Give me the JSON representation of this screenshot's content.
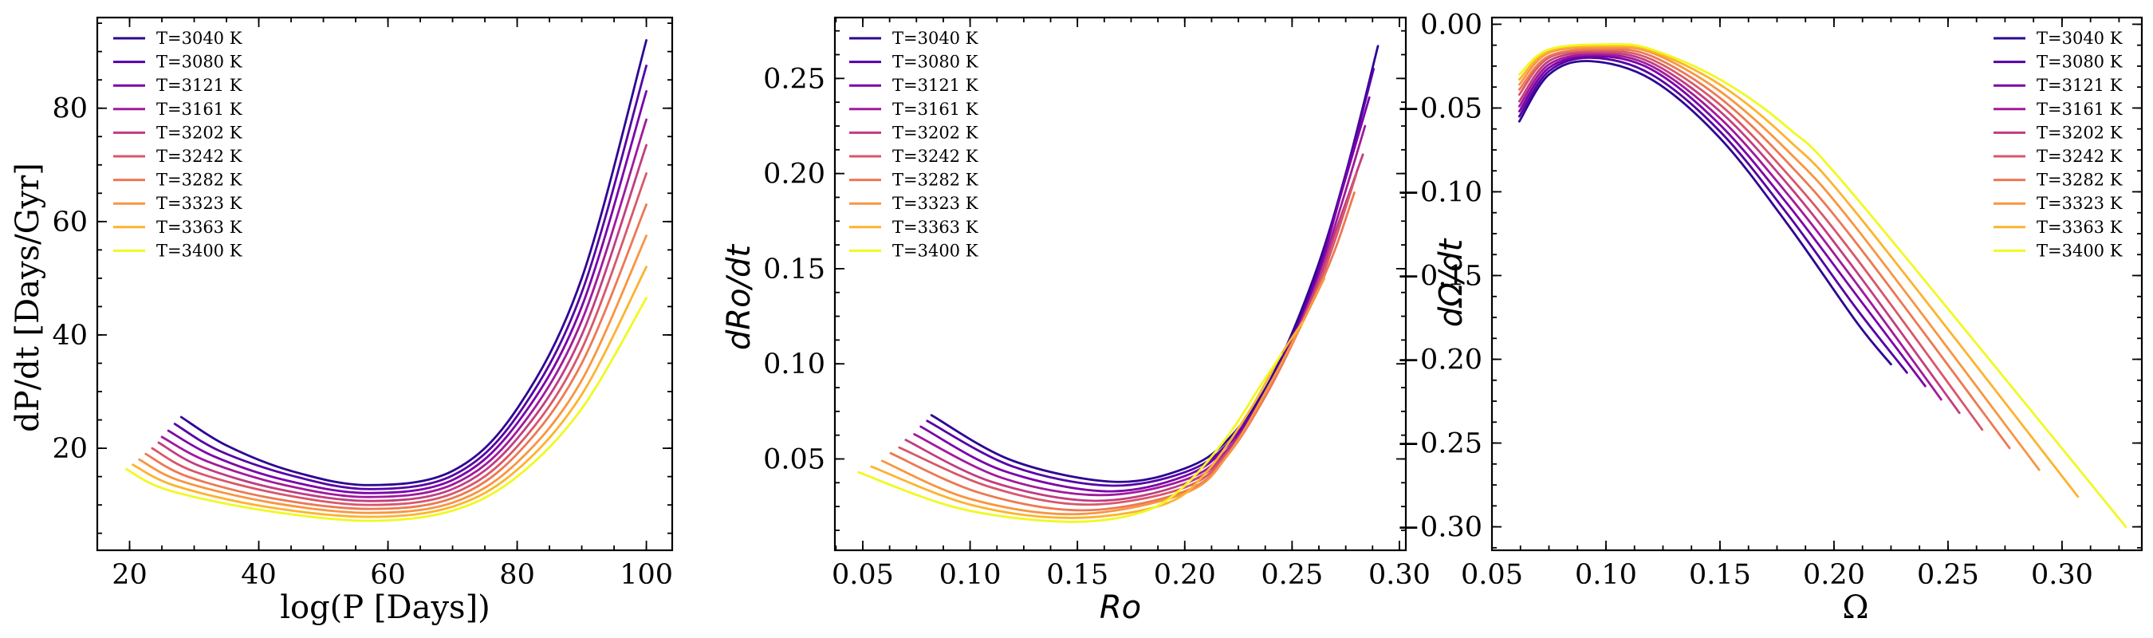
{
  "legend_labels": [
    "T=3040 K",
    "T=3080 K",
    "T=3121 K",
    "T=3161 K",
    "T=3202 K",
    "T=3242 K",
    "T=3282 K",
    "T=3323 K",
    "T=3363 K",
    "T=3400 K"
  ],
  "series_colors": [
    "#2c0594",
    "#5502a4",
    "#7b02a8",
    "#a01a9c",
    "#c13d80",
    "#d8576b",
    "#ec7853",
    "#f89540",
    "#fdb32f",
    "#f0f921"
  ],
  "chart_data": [
    {
      "type": "line",
      "xlabel": "log(P [Days])",
      "ylabel": "dP/dt [Days/Gyr]",
      "xlim": [
        15,
        104
      ],
      "ylim": [
        2,
        96
      ],
      "xticks": [
        20,
        40,
        60,
        80,
        100
      ],
      "yticks": [
        20,
        40,
        60,
        80
      ],
      "grid": false,
      "legend_position": "top-left",
      "series": [
        {
          "name": "T=3040 K",
          "x": [
            28,
            35,
            45,
            57,
            70,
            80,
            90,
            100
          ],
          "y": [
            25.5,
            20.5,
            16,
            13.5,
            16,
            27,
            50,
            92
          ]
        },
        {
          "name": "T=3080 K",
          "x": [
            27,
            34,
            45,
            57,
            70,
            80,
            90,
            100
          ],
          "y": [
            24.3,
            19.5,
            15.2,
            12.8,
            15.2,
            25.7,
            47.5,
            87.5
          ]
        },
        {
          "name": "T=3121 K",
          "x": [
            26,
            33,
            44,
            57,
            70,
            80,
            90,
            100
          ],
          "y": [
            23.1,
            18.6,
            14.4,
            12.1,
            14.4,
            24.4,
            45,
            83
          ]
        },
        {
          "name": "T=3161 K",
          "x": [
            25,
            32,
            44,
            57,
            70,
            80,
            90,
            100
          ],
          "y": [
            22,
            17.7,
            13.5,
            11.4,
            13.6,
            23,
            42.5,
            78
          ]
        },
        {
          "name": "T=3202 K",
          "x": [
            24.5,
            31,
            43,
            57,
            70,
            80,
            90,
            100
          ],
          "y": [
            21,
            16.8,
            12.8,
            10.7,
            12.8,
            21.7,
            40,
            73.5
          ]
        },
        {
          "name": "T=3242 K",
          "x": [
            23.5,
            30,
            43,
            57,
            70,
            80,
            90,
            100
          ],
          "y": [
            20,
            15.9,
            12,
            10,
            12,
            20.3,
            37.5,
            68.5
          ]
        },
        {
          "name": "T=3282 K",
          "x": [
            22.5,
            29,
            42,
            57,
            70,
            80,
            90,
            100
          ],
          "y": [
            19,
            15,
            11.2,
            9.3,
            11.2,
            19,
            35,
            63
          ]
        },
        {
          "name": "T=3323 K",
          "x": [
            21.5,
            28,
            42,
            57,
            70,
            80,
            90,
            100
          ],
          "y": [
            18,
            14.2,
            10.4,
            8.6,
            10.4,
            17.5,
            32,
            57.5
          ]
        },
        {
          "name": "T=3363 K",
          "x": [
            20.5,
            27,
            41,
            57,
            70,
            80,
            90,
            100
          ],
          "y": [
            17.1,
            13.4,
            9.7,
            7.9,
            9.7,
            16.2,
            29.5,
            52
          ]
        },
        {
          "name": "T=3400 K",
          "x": [
            19.5,
            26,
            41,
            57,
            70,
            80,
            90,
            100
          ],
          "y": [
            16.3,
            12.6,
            9,
            7.2,
            9,
            15,
            27,
            46.5
          ]
        }
      ]
    },
    {
      "type": "line",
      "xlabel": "Ro",
      "ylabel": "dRo/dt",
      "xlim": [
        0.037,
        0.303
      ],
      "ylim": [
        0.002,
        0.282
      ],
      "xticks": [
        0.05,
        0.1,
        0.15,
        0.2,
        0.25,
        0.3
      ],
      "yticks": [
        0.05,
        0.1,
        0.15,
        0.2,
        0.25
      ],
      "grid": false,
      "legend_position": "top-left",
      "series": [
        {
          "name": "T=3040 K",
          "x": [
            0.082,
            0.12,
            0.167,
            0.2,
            0.22,
            0.24,
            0.26,
            0.275,
            0.29
          ],
          "y": [
            0.073,
            0.049,
            0.038,
            0.045,
            0.06,
            0.092,
            0.145,
            0.2,
            0.267
          ]
        },
        {
          "name": "T=3080 K",
          "x": [
            0.08,
            0.12,
            0.165,
            0.2,
            0.22,
            0.24,
            0.26,
            0.274,
            0.288
          ],
          "y": [
            0.07,
            0.046,
            0.036,
            0.043,
            0.058,
            0.09,
            0.142,
            0.195,
            0.255
          ]
        },
        {
          "name": "T=3121 K",
          "x": [
            0.077,
            0.115,
            0.163,
            0.2,
            0.22,
            0.24,
            0.26,
            0.273,
            0.286
          ],
          "y": [
            0.067,
            0.044,
            0.033,
            0.041,
            0.057,
            0.089,
            0.14,
            0.19,
            0.24
          ]
        },
        {
          "name": "T=3161 K",
          "x": [
            0.074,
            0.115,
            0.16,
            0.2,
            0.22,
            0.24,
            0.26,
            0.272,
            0.284
          ],
          "y": [
            0.063,
            0.04,
            0.031,
            0.039,
            0.055,
            0.088,
            0.138,
            0.18,
            0.225
          ]
        },
        {
          "name": "T=3202 K",
          "x": [
            0.07,
            0.11,
            0.158,
            0.2,
            0.22,
            0.24,
            0.26,
            0.271,
            0.283
          ],
          "y": [
            0.06,
            0.038,
            0.028,
            0.037,
            0.054,
            0.088,
            0.137,
            0.172,
            0.21
          ]
        },
        {
          "name": "T=3242 K",
          "x": [
            0.067,
            0.11,
            0.155,
            0.2,
            0.22,
            0.24,
            0.26,
            0.27,
            0.28
          ],
          "y": [
            0.056,
            0.035,
            0.026,
            0.035,
            0.053,
            0.088,
            0.135,
            0.165,
            0.2
          ]
        },
        {
          "name": "T=3282 K",
          "x": [
            0.063,
            0.105,
            0.153,
            0.2,
            0.22,
            0.24,
            0.26,
            0.27,
            0.279
          ],
          "y": [
            0.053,
            0.032,
            0.023,
            0.033,
            0.052,
            0.088,
            0.134,
            0.16,
            0.19
          ]
        },
        {
          "name": "T=3323 K",
          "x": [
            0.059,
            0.1,
            0.15,
            0.2,
            0.22,
            0.24,
            0.255,
            0.265
          ],
          "y": [
            0.049,
            0.029,
            0.021,
            0.032,
            0.052,
            0.09,
            0.122,
            0.145
          ]
        },
        {
          "name": "T=3363 K",
          "x": [
            0.054,
            0.1,
            0.147,
            0.19,
            0.21,
            0.23,
            0.245,
            0.255
          ],
          "y": [
            0.046,
            0.026,
            0.019,
            0.026,
            0.043,
            0.075,
            0.105,
            0.122
          ]
        },
        {
          "name": "T=3400 K",
          "x": [
            0.048,
            0.095,
            0.145,
            0.18,
            0.2,
            0.22,
            0.235,
            0.245
          ],
          "y": [
            0.043,
            0.024,
            0.017,
            0.022,
            0.036,
            0.062,
            0.088,
            0.105
          ]
        }
      ]
    },
    {
      "type": "line",
      "xlabel": "Ω",
      "ylabel": "dΩ/dt",
      "xlim": [
        0.05,
        0.335
      ],
      "ylim": [
        -0.314,
        0.004
      ],
      "xticks": [
        0.05,
        0.1,
        0.15,
        0.2,
        0.25,
        0.3
      ],
      "yticks": [
        0.0,
        -0.05,
        -0.1,
        -0.15,
        -0.2,
        -0.25,
        -0.3
      ],
      "tick_labels_y": [
        "0.00",
        "−0.05",
        "−0.10",
        "−0.15",
        "−0.20",
        "−0.25",
        "−0.30"
      ],
      "grid": false,
      "legend_position": "top-right",
      "series": [
        {
          "name": "T=3040 K",
          "x": [
            0.062,
            0.075,
            0.093,
            0.12,
            0.15,
            0.18,
            0.21,
            0.225
          ],
          "y": [
            -0.058,
            -0.03,
            -0.022,
            -0.033,
            -0.068,
            -0.12,
            -0.178,
            -0.203
          ]
        },
        {
          "name": "T=3080 K",
          "x": [
            0.062,
            0.075,
            0.094,
            0.12,
            0.15,
            0.18,
            0.21,
            0.232
          ],
          "y": [
            -0.055,
            -0.028,
            -0.02,
            -0.03,
            -0.064,
            -0.114,
            -0.17,
            -0.208
          ]
        },
        {
          "name": "T=3121 K",
          "x": [
            0.062,
            0.075,
            0.095,
            0.12,
            0.15,
            0.18,
            0.21,
            0.24
          ],
          "y": [
            -0.052,
            -0.026,
            -0.019,
            -0.027,
            -0.06,
            -0.108,
            -0.162,
            -0.216
          ]
        },
        {
          "name": "T=3161 K",
          "x": [
            0.062,
            0.075,
            0.096,
            0.12,
            0.15,
            0.18,
            0.21,
            0.247
          ],
          "y": [
            -0.049,
            -0.024,
            -0.018,
            -0.025,
            -0.056,
            -0.102,
            -0.155,
            -0.224
          ]
        },
        {
          "name": "T=3202 K",
          "x": [
            0.062,
            0.075,
            0.097,
            0.12,
            0.15,
            0.18,
            0.21,
            0.255
          ],
          "y": [
            -0.046,
            -0.022,
            -0.017,
            -0.023,
            -0.052,
            -0.096,
            -0.148,
            -0.232
          ]
        },
        {
          "name": "T=3242 K",
          "x": [
            0.062,
            0.075,
            0.098,
            0.12,
            0.15,
            0.18,
            0.21,
            0.265
          ],
          "y": [
            -0.042,
            -0.02,
            -0.016,
            -0.021,
            -0.048,
            -0.09,
            -0.14,
            -0.242
          ]
        },
        {
          "name": "T=3282 K",
          "x": [
            0.062,
            0.075,
            0.099,
            0.12,
            0.15,
            0.18,
            0.21,
            0.277
          ],
          "y": [
            -0.039,
            -0.019,
            -0.015,
            -0.019,
            -0.044,
            -0.083,
            -0.131,
            -0.253
          ]
        },
        {
          "name": "T=3323 K",
          "x": [
            0.062,
            0.075,
            0.1,
            0.12,
            0.15,
            0.18,
            0.21,
            0.29
          ],
          "y": [
            -0.036,
            -0.017,
            -0.014,
            -0.017,
            -0.04,
            -0.076,
            -0.122,
            -0.266
          ]
        },
        {
          "name": "T=3363 K",
          "x": [
            0.062,
            0.075,
            0.101,
            0.12,
            0.15,
            0.18,
            0.21,
            0.307
          ],
          "y": [
            -0.033,
            -0.016,
            -0.013,
            -0.016,
            -0.036,
            -0.069,
            -0.113,
            -0.282
          ]
        },
        {
          "name": "T=3400 K",
          "x": [
            0.062,
            0.075,
            0.102,
            0.12,
            0.15,
            0.18,
            0.21,
            0.328
          ],
          "y": [
            -0.03,
            -0.015,
            -0.012,
            -0.015,
            -0.033,
            -0.062,
            -0.104,
            -0.3
          ]
        }
      ]
    }
  ],
  "axis_labels": {
    "p1_x": "log(P [Days])",
    "p1_y": "dP/dt [Days/Gyr]",
    "p2_x": "Ro",
    "p2_y": "dRo/dt",
    "p3_x": "Ω",
    "p3_y": "dΩ/dt"
  }
}
